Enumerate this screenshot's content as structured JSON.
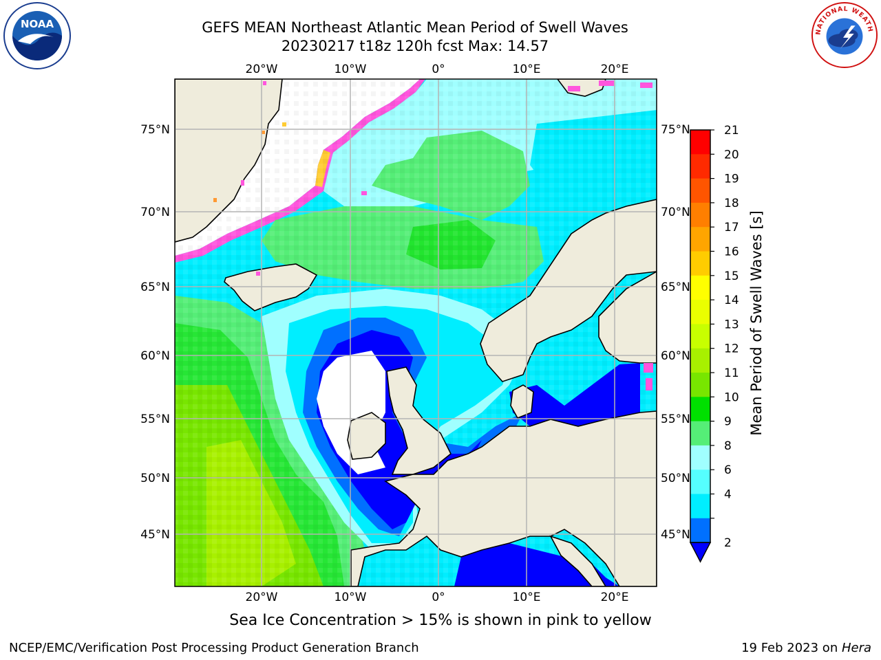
{
  "title": {
    "line1": "GEFS MEAN Northeast Atlantic Mean Period of Swell Waves",
    "line2": "20230217 t18z 120h fcst   Max: 14.57"
  },
  "map": {
    "lon_labels": [
      "20°W",
      "10°W",
      "0°",
      "10°E",
      "20°E"
    ],
    "lat_labels": [
      "75°N",
      "70°N",
      "65°N",
      "60°N",
      "55°N",
      "50°N",
      "45°N"
    ],
    "colors": {
      "land": "#efecdc",
      "grid": "#b4b4b4",
      "coast": "#000000"
    }
  },
  "colorbar": {
    "title": "Mean Period of Swell Waves [s]",
    "ticks": [
      "21",
      "20",
      "19",
      "18",
      "17",
      "16",
      "15",
      "14",
      "13",
      "12",
      "11",
      "10",
      "9",
      "8",
      "6",
      "4",
      "2"
    ],
    "colors": [
      "#ff0000",
      "#ff2a00",
      "#ff5500",
      "#ff7f00",
      "#ffa500",
      "#ffcc00",
      "#ffff00",
      "#eaff00",
      "#c8ff00",
      "#a8f000",
      "#78e600",
      "#00e000",
      "#55ee77",
      "#a0ffff",
      "#55ffff",
      "#00eeff",
      "#0070ff"
    ],
    "under_color": "#0000ff"
  },
  "note": "Sea Ice Concentration > 15% is shown in pink to yellow",
  "footer": {
    "left": "NCEP/EMC/Verification Post Processing Product Generation Branch",
    "date": "19 Feb 2023 on ",
    "host": "Hera"
  },
  "logos": {
    "noaa_text": "NOAA",
    "nws_text": "NATIONAL WEATHER SERVICE"
  }
}
